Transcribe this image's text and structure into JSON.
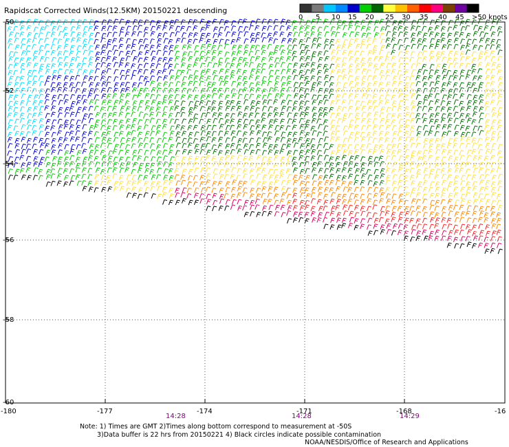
{
  "title": "Rapidscat Corrected Winds(12.5KM) 20150221 descending",
  "legend": {
    "labels": [
      "0",
      "5",
      "10",
      "15",
      "20",
      "25",
      "30",
      "35",
      "40",
      "45",
      ">50 knots"
    ],
    "colors": [
      "#333333",
      "#7a7a7a",
      "#00c8ff",
      "#0088ff",
      "#0000cc",
      "#00d000",
      "#006400",
      "#ffff40",
      "#ffc000",
      "#ff6000",
      "#ff0000",
      "#ff0080",
      "#7b3f00",
      "#7000a0",
      "#000000"
    ]
  },
  "lat_labels": [
    "-50",
    "-52",
    "-54",
    "-56",
    "-58",
    "-60"
  ],
  "lon_labels": [
    "-180",
    "-177",
    "-174",
    "-171",
    "-168",
    "-16"
  ],
  "time_labels": [
    "14:28",
    "14:28",
    "14:29"
  ],
  "notes": {
    "line1": "Note: 1) Times are GMT 2)Times along bottom correspond to measurement at -50S",
    "line2": "3)Data buffer is 22 hrs from 20150221 4) Black circles indicate possible contamination",
    "line3": "NOAA/NESDIS/Office of Research and Applications"
  },
  "wind_colors": {
    "calm": "#00e0ff",
    "light": "#0000dd",
    "moderate": "#00cc00",
    "fresh": "#007000",
    "strong": "#ffe040",
    "gale": "#ff8800",
    "storm": "#ff2020",
    "severe": "#e00060",
    "edge": "#000000"
  }
}
